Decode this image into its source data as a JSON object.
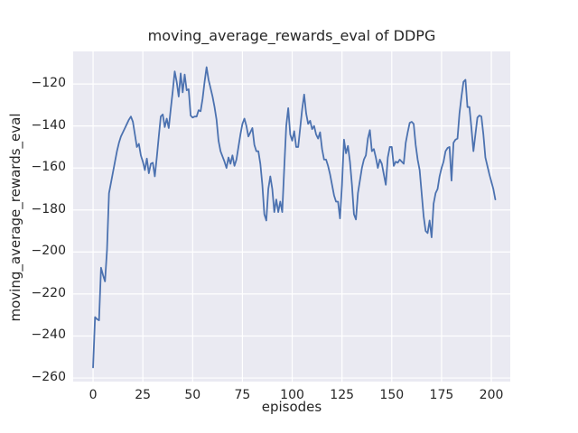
{
  "chart_data": {
    "type": "line",
    "title": "moving_average_rewards_eval of DDPG",
    "xlabel": "episodes",
    "ylabel": "moving_average_rewards_eval",
    "x_ticks": [
      0,
      25,
      50,
      75,
      100,
      125,
      150,
      175,
      200
    ],
    "y_ticks": [
      -120,
      -140,
      -160,
      -180,
      -200,
      -220,
      -240,
      -260
    ],
    "xlim": [
      -10,
      209.5
    ],
    "ylim": [
      -261.7,
      -104.5
    ],
    "grid": true,
    "legend_position": "none",
    "axes_bg_color": "#EAEAF2",
    "grid_color": "#FFFFFF",
    "line_color": "#4C72B0",
    "series": [
      {
        "name": "moving_average_rewards_eval",
        "x_start": 0,
        "x_step": 1,
        "values": [
          -255,
          -231,
          -232,
          -232.5,
          -207.5,
          -211,
          -214,
          -199,
          -172,
          -167,
          -162,
          -157,
          -152,
          -148,
          -145,
          -143,
          -141,
          -139,
          -137,
          -135.5,
          -138,
          -144,
          -150,
          -148.5,
          -154,
          -157,
          -161,
          -155.5,
          -162.5,
          -158,
          -157.5,
          -164,
          -155,
          -145,
          -135.5,
          -134.5,
          -140.5,
          -136.5,
          -141,
          -132,
          -123.5,
          -114,
          -119,
          -126,
          -115,
          -124,
          -115.5,
          -123,
          -122.5,
          -135,
          -136,
          -135.5,
          -135.5,
          -132.5,
          -133,
          -127,
          -119,
          -112,
          -118,
          -122,
          -126,
          -131,
          -137,
          -147,
          -152,
          -154.5,
          -157,
          -160,
          -155,
          -158,
          -154,
          -159,
          -156,
          -150,
          -144,
          -139,
          -136.5,
          -140,
          -145,
          -143,
          -141,
          -149,
          -152,
          -152,
          -158,
          -168,
          -182,
          -185,
          -170,
          -164,
          -170,
          -181,
          -175,
          -181,
          -176,
          -181,
          -160,
          -140,
          -131.5,
          -144,
          -147,
          -142.5,
          -150,
          -150,
          -141,
          -132,
          -125,
          -134,
          -139,
          -137.5,
          -141.5,
          -140,
          -144,
          -146,
          -143,
          -151,
          -156,
          -156,
          -159,
          -163,
          -168,
          -173,
          -176,
          -176,
          -184,
          -168,
          -146.5,
          -153,
          -149.5,
          -157,
          -168,
          -182,
          -184.5,
          -172,
          -166,
          -160,
          -156,
          -154,
          -146,
          -142,
          -152,
          -151,
          -155,
          -160,
          -156,
          -158,
          -163,
          -168,
          -155,
          -150,
          -150,
          -159,
          -157,
          -157.5,
          -156,
          -157,
          -158,
          -148,
          -143,
          -138.5,
          -138,
          -139,
          -149,
          -156,
          -161,
          -172,
          -183,
          -190,
          -191,
          -185,
          -193,
          -177,
          -172,
          -170,
          -164,
          -160,
          -157,
          -152,
          -150.5,
          -150,
          -166,
          -148,
          -146.5,
          -146,
          -134,
          -126,
          -119,
          -118,
          -131,
          -131,
          -141,
          -152,
          -144,
          -136,
          -135,
          -135.5,
          -144,
          -155,
          -159,
          -163,
          -166.5,
          -170,
          -175
        ]
      }
    ]
  }
}
